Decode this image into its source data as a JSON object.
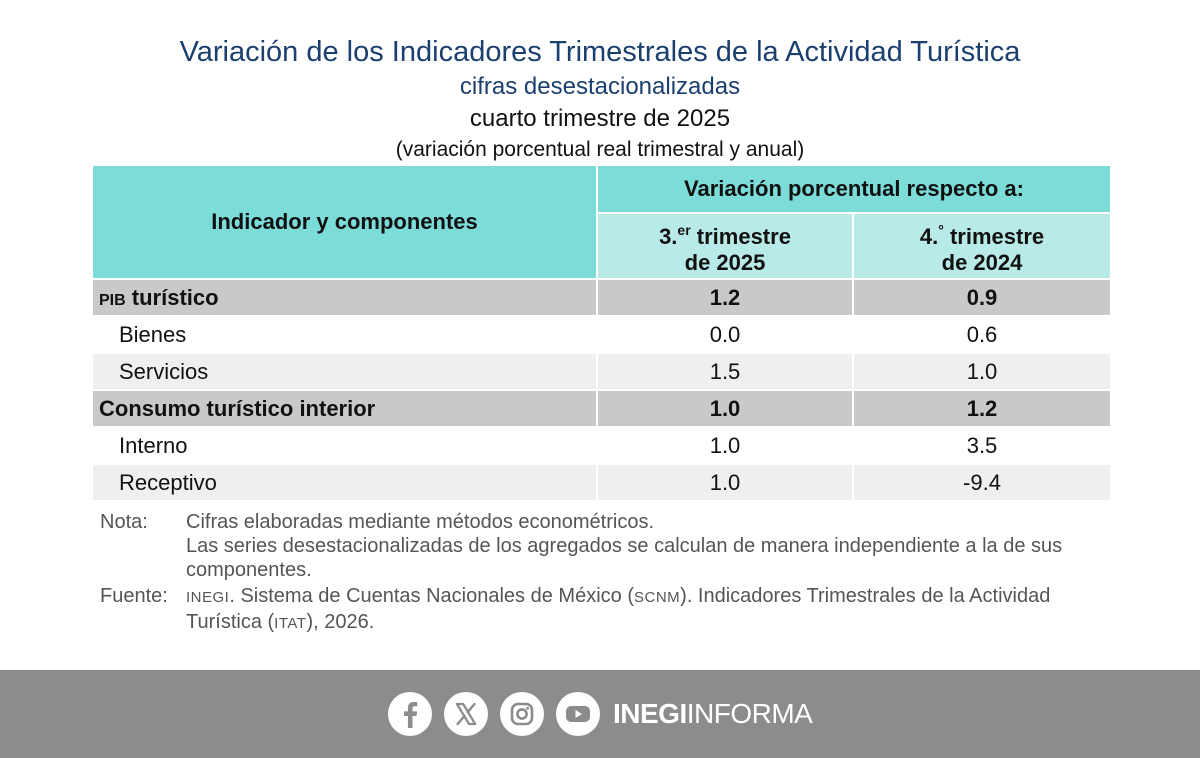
{
  "header": {
    "title": "Variación de los Indicadores Trimestrales de la Actividad Turística",
    "subtitle": "cifras desestacionalizadas",
    "period": "cuarto trimestre de 2025",
    "unit": "(variación porcentual real trimestral y anual)"
  },
  "table": {
    "indicator_header": "Indicador y componentes",
    "variation_header": "Variación porcentual respecto a:",
    "col1": {
      "ordinal": "3.",
      "sup": "er",
      "word": " trimestre",
      "year": "de 2025"
    },
    "col2": {
      "ordinal": "4.",
      "sup": "°",
      "word": " trimestre",
      "year": "de 2024"
    },
    "rows": [
      {
        "label_prefix": "PIB",
        "label": " turístico",
        "q": "1.2",
        "y": "0.9"
      },
      {
        "label": "Bienes",
        "q": "0.0",
        "y": "0.6"
      },
      {
        "label": "Servicios",
        "q": "1.5",
        "y": "1.0"
      },
      {
        "label": "Consumo turístico interior",
        "q": "1.0",
        "y": "1.2"
      },
      {
        "label": "Interno",
        "q": "1.0",
        "y": "3.5"
      },
      {
        "label": "Receptivo",
        "q": "1.0",
        "y": "-9.4"
      }
    ]
  },
  "notes": {
    "nota_label": "Nota:",
    "nota_line1": "Cifras elaboradas mediante métodos econométricos.",
    "nota_line2": "Las series desestacionalizadas de los agregados se calculan de manera independiente a la de sus componentes.",
    "fuente_label": "Fuente:",
    "fuente_inegi": "INEGI",
    "fuente_part1": ". Sistema de Cuentas Nacionales de México (",
    "fuente_scnm": "SCNM",
    "fuente_part2": "). Indicadores Trimestrales de la Actividad Turística (",
    "fuente_itat": "ITAT",
    "fuente_part3": "), 2026."
  },
  "footer": {
    "icons": [
      "facebook-icon",
      "x-icon",
      "instagram-icon",
      "youtube-icon"
    ],
    "brand_bold": "INEGI",
    "brand_light": "INFORMA"
  },
  "colors": {
    "title": "#1b3f6e",
    "header_bg": "#7cdcd8",
    "subheader_bg": "#b8ebe8",
    "total_row_bg": "#c9c9c9",
    "alt_row_bg": "#efefef",
    "footer_bg": "#8c8c8c"
  }
}
